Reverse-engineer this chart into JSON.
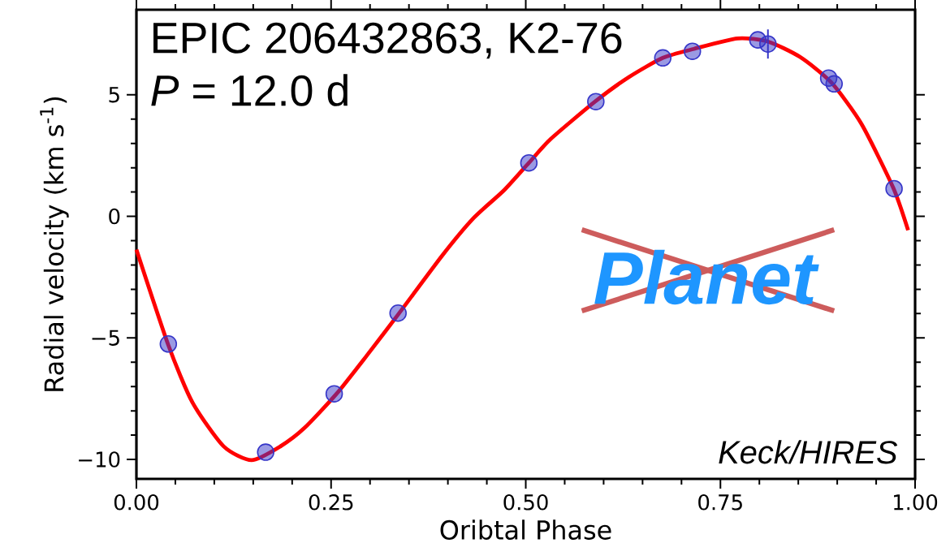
{
  "chart_data": {
    "type": "scatter",
    "xlabel": "Oribtal Phase",
    "ylabel": "Radial velocity (km s$^{-1}$)",
    "annotations": [
      "EPIC 206432863, K2-76",
      "*P* = 12.0 d",
      "Keck/HIRES",
      "Planet"
    ],
    "xlim": [
      0,
      1
    ],
    "ylim": [
      -10.8,
      8.5
    ],
    "xticks": [
      {
        "value": 0,
        "label": "0.00"
      },
      {
        "value": 0.25,
        "label": "0.25"
      },
      {
        "value": 0.5,
        "label": "0.50"
      },
      {
        "value": 0.75,
        "label": "0.75"
      },
      {
        "value": 1,
        "label": "1.00"
      }
    ],
    "yticks": [
      {
        "value": -10,
        "label": "−10"
      },
      {
        "value": -5,
        "label": "−5"
      },
      0,
      5
    ],
    "series": [
      {
        "type": "line",
        "color": "#ff0000",
        "marker": "none",
        "line_style": "solid",
        "x": [
          0.0,
          0.041,
          0.072,
          0.112,
          0.148,
          0.185,
          0.216,
          0.257,
          0.296,
          0.337,
          0.393,
          0.433,
          0.472,
          0.504,
          0.532,
          0.589,
          0.632,
          0.676,
          0.716,
          0.772,
          0.811,
          0.852,
          0.892,
          0.931,
          0.972,
          0.991
        ],
        "values": [
          -1.37,
          -5.3,
          -7.66,
          -9.46,
          -10.03,
          -9.46,
          -8.7,
          -7.3,
          -5.72,
          -4.0,
          -1.6,
          -0.07,
          1.07,
          2.2,
          3.18,
          4.72,
          5.72,
          6.52,
          6.89,
          7.32,
          7.19,
          6.56,
          5.52,
          3.81,
          1.17,
          -0.57
        ]
      },
      {
        "color": "#3535c8",
        "marker": "circle",
        "x": [
          0.041,
          0.166,
          0.254,
          0.336,
          0.504,
          0.59,
          0.676,
          0.714,
          0.798,
          0.811,
          0.889,
          0.896,
          0.973
        ],
        "values": [
          -5.25,
          -9.7,
          -7.3,
          -3.98,
          2.2,
          4.72,
          6.52,
          6.79,
          7.26,
          7.09,
          5.69,
          5.45,
          1.14
        ],
        "errors": [
          null,
          null,
          null,
          null,
          null,
          null,
          null,
          null,
          null,
          0.6,
          null,
          null,
          null
        ]
      }
    ]
  }
}
